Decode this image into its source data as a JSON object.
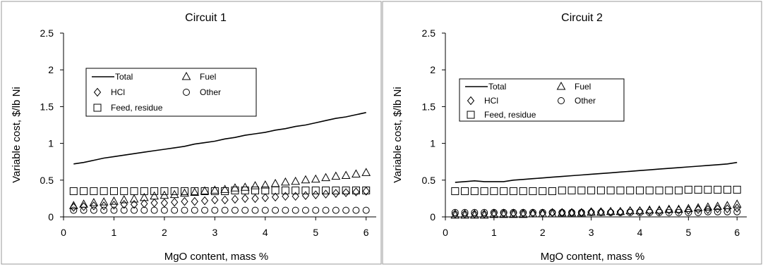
{
  "chart_data": [
    {
      "type": "line",
      "title": "Circuit 1",
      "xlabel": "MgO content, mass %",
      "ylabel": "Variable cost, $/lb Ni",
      "xlim": [
        0,
        6.2
      ],
      "ylim": [
        0,
        2.5
      ],
      "xticks": [
        "0",
        "1",
        "2",
        "3",
        "4",
        "5",
        "6"
      ],
      "yticks": [
        "0",
        "0.5",
        "1",
        "1.5",
        "2",
        "2.5"
      ],
      "grid": false,
      "legend_position": "upper-left inside plot",
      "x": [
        0.2,
        0.4,
        0.6,
        0.8,
        1.0,
        1.2,
        1.4,
        1.6,
        1.8,
        2.0,
        2.2,
        2.4,
        2.6,
        2.8,
        3.0,
        3.2,
        3.4,
        3.6,
        3.8,
        4.0,
        4.2,
        4.4,
        4.6,
        4.8,
        5.0,
        5.2,
        5.4,
        5.6,
        5.8,
        6.0
      ],
      "series": [
        {
          "name": "Total",
          "marker": "line",
          "values": [
            0.72,
            0.74,
            0.77,
            0.8,
            0.82,
            0.84,
            0.86,
            0.88,
            0.9,
            0.92,
            0.94,
            0.96,
            0.99,
            1.01,
            1.03,
            1.06,
            1.08,
            1.11,
            1.13,
            1.15,
            1.18,
            1.2,
            1.23,
            1.25,
            1.28,
            1.31,
            1.34,
            1.36,
            1.39,
            1.42
          ]
        },
        {
          "name": "Fuel",
          "marker": "triangle",
          "values": [
            0.15,
            0.17,
            0.19,
            0.2,
            0.21,
            0.23,
            0.24,
            0.26,
            0.28,
            0.29,
            0.3,
            0.32,
            0.33,
            0.35,
            0.36,
            0.37,
            0.39,
            0.4,
            0.42,
            0.43,
            0.45,
            0.47,
            0.48,
            0.5,
            0.51,
            0.53,
            0.55,
            0.56,
            0.58,
            0.6
          ]
        },
        {
          "name": "HCl",
          "marker": "diamond",
          "values": [
            0.13,
            0.14,
            0.15,
            0.15,
            0.16,
            0.17,
            0.17,
            0.18,
            0.19,
            0.19,
            0.2,
            0.21,
            0.21,
            0.22,
            0.23,
            0.23,
            0.24,
            0.25,
            0.25,
            0.26,
            0.27,
            0.28,
            0.28,
            0.29,
            0.3,
            0.31,
            0.32,
            0.33,
            0.34,
            0.35
          ]
        },
        {
          "name": "Other",
          "marker": "circle",
          "values": [
            0.09,
            0.09,
            0.09,
            0.09,
            0.09,
            0.09,
            0.09,
            0.09,
            0.09,
            0.09,
            0.09,
            0.09,
            0.09,
            0.09,
            0.09,
            0.09,
            0.09,
            0.09,
            0.09,
            0.09,
            0.09,
            0.09,
            0.09,
            0.09,
            0.09,
            0.09,
            0.09,
            0.09,
            0.09,
            0.09
          ]
        },
        {
          "name": "Feed, residue",
          "marker": "square",
          "values": [
            0.35,
            0.35,
            0.35,
            0.35,
            0.35,
            0.35,
            0.35,
            0.35,
            0.35,
            0.35,
            0.35,
            0.35,
            0.35,
            0.35,
            0.35,
            0.35,
            0.36,
            0.36,
            0.36,
            0.36,
            0.36,
            0.36,
            0.36,
            0.36,
            0.36,
            0.36,
            0.36,
            0.36,
            0.36,
            0.36
          ]
        }
      ]
    },
    {
      "type": "line",
      "title": "Circuit 2",
      "xlabel": "MgO content, mass %",
      "ylabel": "Variable cost, $/lb Ni",
      "xlim": [
        0,
        6.2
      ],
      "ylim": [
        0,
        2.5
      ],
      "xticks": [
        "0",
        "1",
        "2",
        "3",
        "4",
        "5",
        "6"
      ],
      "yticks": [
        "0",
        "0.5",
        "1",
        "1.5",
        "2",
        "2.5"
      ],
      "grid": false,
      "legend_position": "upper-left inside plot",
      "x": [
        0.2,
        0.4,
        0.6,
        0.8,
        1.0,
        1.2,
        1.4,
        1.6,
        1.8,
        2.0,
        2.2,
        2.4,
        2.6,
        2.8,
        3.0,
        3.2,
        3.4,
        3.6,
        3.8,
        4.0,
        4.2,
        4.4,
        4.6,
        4.8,
        5.0,
        5.2,
        5.4,
        5.6,
        5.8,
        6.0
      ],
      "series": [
        {
          "name": "Total",
          "marker": "line",
          "values": [
            0.47,
            0.48,
            0.49,
            0.48,
            0.48,
            0.48,
            0.5,
            0.51,
            0.52,
            0.53,
            0.54,
            0.55,
            0.56,
            0.57,
            0.58,
            0.59,
            0.6,
            0.61,
            0.62,
            0.63,
            0.64,
            0.65,
            0.66,
            0.67,
            0.68,
            0.69,
            0.7,
            0.71,
            0.72,
            0.74
          ]
        },
        {
          "name": "Fuel",
          "marker": "triangle",
          "values": [
            0.02,
            0.02,
            0.02,
            0.02,
            0.03,
            0.03,
            0.03,
            0.03,
            0.04,
            0.04,
            0.04,
            0.05,
            0.05,
            0.05,
            0.06,
            0.06,
            0.07,
            0.07,
            0.08,
            0.08,
            0.09,
            0.09,
            0.1,
            0.1,
            0.11,
            0.12,
            0.13,
            0.14,
            0.15,
            0.17
          ]
        },
        {
          "name": "HCl",
          "marker": "diamond",
          "values": [
            0.04,
            0.04,
            0.04,
            0.04,
            0.05,
            0.05,
            0.05,
            0.05,
            0.05,
            0.05,
            0.06,
            0.06,
            0.06,
            0.06,
            0.07,
            0.07,
            0.07,
            0.07,
            0.08,
            0.08,
            0.08,
            0.08,
            0.09,
            0.09,
            0.09,
            0.1,
            0.1,
            0.11,
            0.11,
            0.12
          ]
        },
        {
          "name": "Other",
          "marker": "circle",
          "values": [
            0.06,
            0.06,
            0.06,
            0.06,
            0.06,
            0.06,
            0.06,
            0.06,
            0.06,
            0.06,
            0.06,
            0.06,
            0.06,
            0.06,
            0.06,
            0.06,
            0.06,
            0.06,
            0.06,
            0.06,
            0.06,
            0.06,
            0.06,
            0.06,
            0.06,
            0.06,
            0.07,
            0.07,
            0.07,
            0.07
          ]
        },
        {
          "name": "Feed, residue",
          "marker": "square",
          "values": [
            0.35,
            0.35,
            0.35,
            0.35,
            0.35,
            0.35,
            0.35,
            0.35,
            0.35,
            0.35,
            0.35,
            0.36,
            0.36,
            0.36,
            0.36,
            0.36,
            0.36,
            0.36,
            0.36,
            0.36,
            0.36,
            0.36,
            0.36,
            0.36,
            0.37,
            0.37,
            0.37,
            0.37,
            0.37,
            0.37
          ]
        }
      ]
    }
  ]
}
